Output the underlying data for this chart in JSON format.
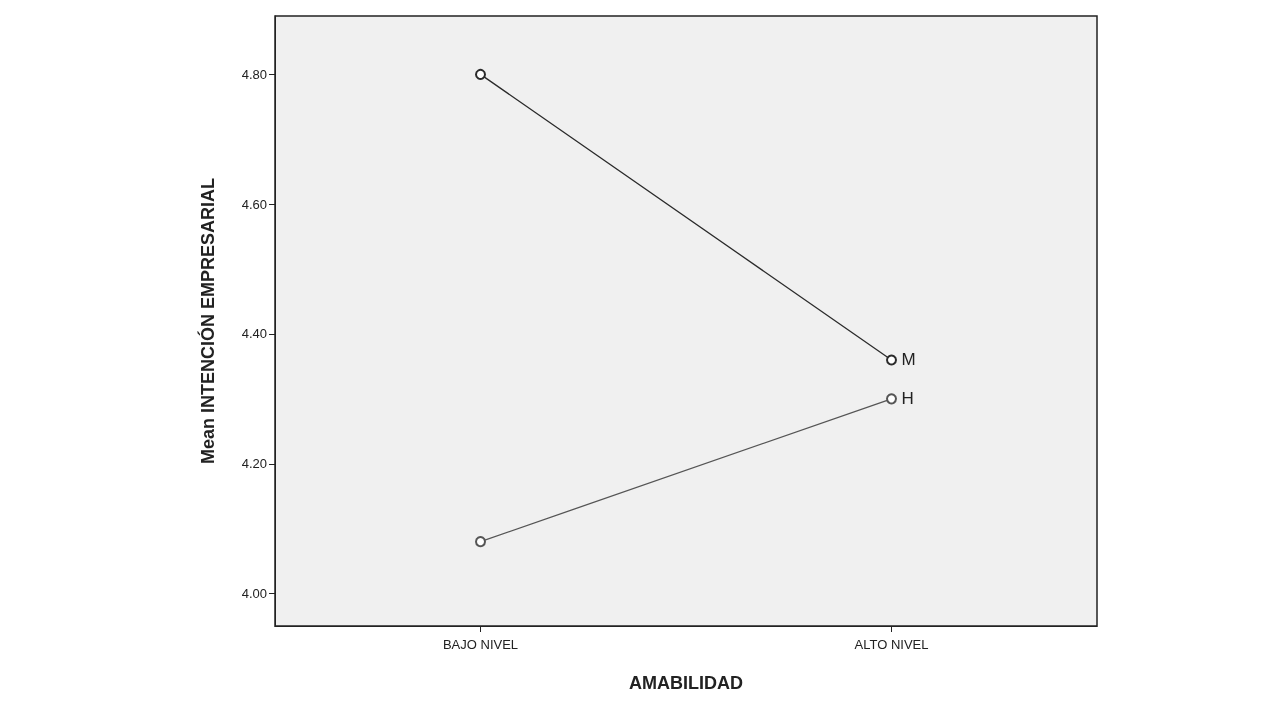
{
  "chart_data": {
    "type": "line",
    "xlabel": "AMABILIDAD",
    "ylabel": "Mean INTENCIÓN EMPRESARIAL",
    "categories": [
      "BAJO NIVEL",
      "ALTO NIVEL"
    ],
    "series": [
      {
        "name": "M",
        "color": "#2b2b2b",
        "values": [
          4.8,
          4.36
        ]
      },
      {
        "name": "H",
        "color": "#555555",
        "values": [
          4.08,
          4.3
        ]
      }
    ],
    "ylim": [
      3.95,
      4.89
    ],
    "yticks": [
      {
        "value": 4.0,
        "label": "4.00"
      },
      {
        "value": 4.2,
        "label": "4.20"
      },
      {
        "value": 4.4,
        "label": "4.40"
      },
      {
        "value": 4.6,
        "label": "4.60"
      },
      {
        "value": 4.8,
        "label": "4.80"
      }
    ],
    "grid": false,
    "legend": false,
    "marker": "circle",
    "line_style": "solid"
  }
}
